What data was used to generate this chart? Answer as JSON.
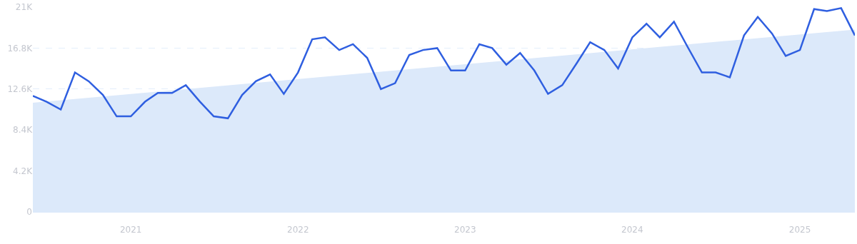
{
  "chart_data": {
    "type": "line",
    "x": [
      "2020-06",
      "2020-07",
      "2020-08",
      "2020-09",
      "2020-10",
      "2020-11",
      "2020-12",
      "2021-01",
      "2021-02",
      "2021-03",
      "2021-04",
      "2021-05",
      "2021-06",
      "2021-07",
      "2021-08",
      "2021-09",
      "2021-10",
      "2021-11",
      "2021-12",
      "2022-01",
      "2022-02",
      "2022-03",
      "2022-04",
      "2022-05",
      "2022-06",
      "2022-07",
      "2022-08",
      "2022-09",
      "2022-10",
      "2022-11",
      "2022-12",
      "2023-01",
      "2023-02",
      "2023-03",
      "2023-04",
      "2023-05",
      "2023-06",
      "2023-07",
      "2023-08",
      "2023-09",
      "2023-10",
      "2023-11",
      "2023-12",
      "2024-01",
      "2024-02",
      "2024-03",
      "2024-04",
      "2024-05",
      "2024-06",
      "2024-07",
      "2024-08",
      "2024-09",
      "2024-10",
      "2024-11",
      "2024-12",
      "2025-01",
      "2025-02",
      "2025-03",
      "2025-04",
      "2025-05"
    ],
    "series": [
      {
        "type": "area",
        "color": "#dce9fa",
        "x": [
          "2020-06",
          "2025-05"
        ],
        "values": [
          11200,
          18700
        ]
      },
      {
        "color": "#2f5fe0",
        "values": [
          11900,
          11300,
          10500,
          14300,
          13400,
          12000,
          9800,
          9800,
          11300,
          12200,
          12200,
          13000,
          11300,
          9800,
          9600,
          12000,
          13400,
          14100,
          12100,
          14300,
          17700,
          17900,
          16600,
          17200,
          15800,
          12600,
          13200,
          16100,
          16600,
          16800,
          14500,
          14500,
          17200,
          16800,
          15100,
          16300,
          14500,
          12100,
          13000,
          15200,
          17400,
          16600,
          14700,
          17900,
          19300,
          17900,
          19500,
          16900,
          14300,
          14300,
          13800,
          18100,
          20000,
          18300,
          16000,
          16600,
          20800,
          20600,
          20900,
          18100
        ]
      }
    ],
    "xlim": [
      "2020-06",
      "2025-05"
    ],
    "xticks": [
      {
        "value": "2021-01",
        "label": "2021"
      },
      {
        "value": "2022-01",
        "label": "2022"
      },
      {
        "value": "2023-01",
        "label": "2023"
      },
      {
        "value": "2024-01",
        "label": "2024"
      },
      {
        "value": "2025-01",
        "label": "2025"
      }
    ],
    "ylim": [
      0,
      21000
    ],
    "yticks": [
      0,
      {
        "value": 4200,
        "label": "4.2K"
      },
      {
        "value": 8400,
        "label": "8.4K"
      },
      {
        "value": 12600,
        "label": "12.6K"
      },
      {
        "value": 16800,
        "label": "16.8K"
      },
      {
        "value": 21000,
        "label": "21K"
      }
    ],
    "grid": "y",
    "line_style": "solid",
    "marker": "none"
  }
}
